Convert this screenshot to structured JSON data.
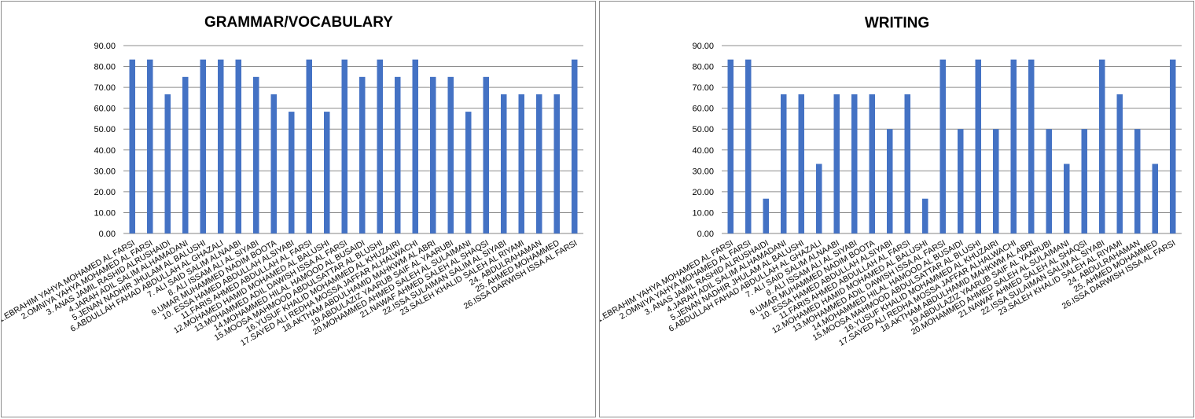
{
  "chart_data": [
    {
      "type": "bar",
      "title": "GRAMMAR/VOCABULARY",
      "xlabel": "",
      "ylabel": "",
      "ylim": [
        0,
        90
      ],
      "ytick_labels": [
        "0.00",
        "10.00",
        "20.00",
        "30.00",
        "40.00",
        "50.00",
        "60.00",
        "70.00",
        "80.00",
        "90.00"
      ],
      "grid": true,
      "legend": "none",
      "bar_color": "#4472C4",
      "categories": [
        "1.EBRAHIM YAHYA MOHAMED AL FARSI",
        "2.OMNIYA YAHYA MOHAMED AL FARSI",
        "3. ANAS JAMIL RASHID ALRUSHAIDI",
        "4.JARAH ADIL SALIM ALHAMADANI",
        "5.JENAN NADHIR JHULAM AL BALUSHI",
        "6.ABDULLAH FAHAD ABDULLAH AL GHAZALI",
        "7. ALI SAID SALIM ALNAABI",
        "8. ALI ISSAM ALI AL SIYABI",
        "9.UMAR MUHAMMED NADIM BOOTA",
        "10. ESSA HAMED ABDULLAH ALSIYABI",
        "11.FARIS AHMED ABDULLAH AL FARSI",
        "12.MOHAMED HAMID MOHAMED AL BALUSHI",
        "13.MOHAMMED ADIL DAWISH ISSA AL FARSI",
        "14.MOHAMMED HILAL HAMOOD AL BUSAIDI",
        "15.MOOSA MAHMOOD ABDULSATTAR AL BLUSHI",
        "16.YUSUF KHALID MOHAMMED AL KHUZAIRI",
        "17.SAYED ALI REDHA MOSSA JAFFAR ALHALWACHI",
        "18.AKTHAM ABDULHAMID MAHKWM AL ABRI",
        "19.ABDULAZIZ YAARUB SAIF AL YAARUBI",
        "20.MOHAMMED AHMED SALEH AL SULAIMANI",
        "21.NAWAF AHMED SALEH AL SHAQSI",
        "22.ISSA SULAIMAN SALIM AL SIYABI",
        "23.SALEH KHALID SALEH AL RIYAMI",
        "24. ABDULRAHAMAN",
        "25. AHMED MOHAMMED",
        "26.ISSA DARWISH ISSA AL FARSI"
      ],
      "values": [
        83.33,
        83.33,
        66.67,
        75.0,
        83.33,
        83.33,
        83.33,
        75.0,
        66.67,
        58.33,
        83.33,
        58.33,
        83.33,
        75.0,
        83.33,
        75.0,
        83.33,
        75.0,
        75.0,
        58.33,
        75.0,
        66.67,
        66.67,
        66.67,
        66.67,
        83.33
      ]
    },
    {
      "type": "bar",
      "title": "WRITING",
      "xlabel": "",
      "ylabel": "",
      "ylim": [
        0,
        90
      ],
      "ytick_labels": [
        "0.00",
        "10.00",
        "20.00",
        "30.00",
        "40.00",
        "50.00",
        "60.00",
        "70.00",
        "80.00",
        "90.00"
      ],
      "grid": true,
      "legend": "none",
      "bar_color": "#4472C4",
      "categories": [
        "1.EBRAHIM YAHYA MOHAMED AL FARSI",
        "2.OMNIYA YAHYA MOHAMED AL FARSI",
        "3. ANAS JAMIL RASHID ALRUSHAIDI",
        "4.JARAH ADIL SALIM ALHAMADANI",
        "5.JENAN NADHIR JHULAM AL BALUSHI",
        "6.ABDULLAH FAHAD ABDULLAH AL GHAZALI",
        "7. ALI SAID SALIM ALNAABI",
        "8. ALI ISSAM ALI AL SIYABI",
        "9.UMAR MUHAMMED NADIM BOOTA",
        "10. ESSA HAMED ABDULLAH ALSIYABI",
        "11.FARIS AHMED ABDULLAH AL FARSI",
        "12.MOHAMED HAMID MOHAMED AL BALUSHI",
        "13.MOHAMMED ADIL DAWISH ISSA AL FARSI",
        "14.MOHAMMED HILAL HAMOOD AL BUSAIDI",
        "15.MOOSA MAHMOOD ABDULSATTAR AL BLUSHI",
        "16.YUSUF KHALID MOHAMMED AL KHUZAIRI",
        "17.SAYED ALI REDHA MOSSA JAFFAR ALHALWACHI",
        "18.AKTHAM ABDULHAMID MAHKWM AL ABRI",
        "19.ABDULAZIZ YAARUB SAIF AL YAARUBI",
        "20.MOHAMMED AHMED SALEH AL SULAIMANI",
        "21.NAWAF AHMED SALEH AL SHAQSI",
        "22.ISSA SULAIMAN SALIM AL SIYABI",
        "23.SALEH KHALID SALEH AL RIYAMI",
        "24. ABDULRAHAMAN",
        "25. AHMED MOHAMMED",
        "26.ISSA DARWISH ISSA AL FARSI"
      ],
      "values": [
        83.33,
        83.33,
        16.67,
        66.67,
        66.67,
        33.33,
        66.67,
        66.67,
        66.67,
        50.0,
        66.67,
        16.67,
        83.33,
        50.0,
        83.33,
        50.0,
        83.33,
        83.33,
        50.0,
        33.33,
        50.0,
        83.33,
        66.67,
        50.0,
        33.33,
        83.33
      ]
    }
  ]
}
